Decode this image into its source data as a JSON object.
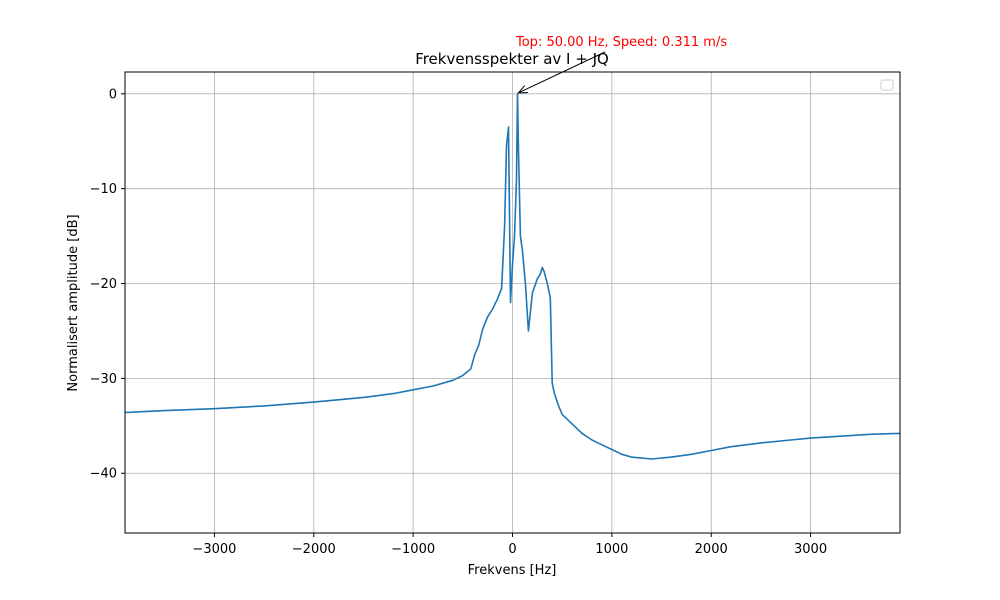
{
  "chart_data": {
    "type": "line",
    "title": "Frekvensspekter av I + JQ",
    "xlabel": "Frekvens [Hz]",
    "ylabel": "Normalisert amplitude [dB]",
    "xlim": [
      -3900,
      3900
    ],
    "ylim": [
      -46.3,
      2.3
    ],
    "xticks": [
      -3000,
      -2000,
      -1000,
      0,
      1000,
      2000,
      3000
    ],
    "xtick_labels": [
      "−3000",
      "−2000",
      "−1000",
      "0",
      "1000",
      "2000",
      "3000"
    ],
    "yticks": [
      0,
      -10,
      -20,
      -30,
      -40
    ],
    "ytick_labels": [
      "0",
      "−10",
      "−20",
      "−30",
      "−40"
    ],
    "grid": true,
    "legend": "top-right, empty",
    "series_color": "#1f77b4",
    "annotation": {
      "text": "Top: 50.00 Hz, Speed: 0.311 m/s",
      "color": "#ff0000",
      "point": [
        50,
        0
      ]
    },
    "series": [
      {
        "x": [
          -3900,
          -3500,
          -3000,
          -2500,
          -2000,
          -1500,
          -1200,
          -1000,
          -800,
          -600,
          -500,
          -420,
          -380,
          -340,
          -300,
          -250,
          -200,
          -150,
          -110,
          -80,
          -60,
          -40,
          -20,
          0,
          20,
          40,
          50,
          60,
          80,
          100,
          130,
          160,
          200,
          250,
          280,
          300,
          320,
          350,
          380,
          400,
          420,
          460,
          500,
          600,
          700,
          800,
          900,
          1000,
          1100,
          1200,
          1400,
          1600,
          1800,
          2000,
          2200,
          2500,
          2800,
          3000,
          3300,
          3600,
          3900
        ],
        "y": [
          -33.6,
          -33.4,
          -33.2,
          -32.9,
          -32.5,
          -32.0,
          -31.6,
          -31.2,
          -30.8,
          -30.2,
          -29.7,
          -29.0,
          -27.5,
          -26.5,
          -24.8,
          -23.5,
          -22.7,
          -21.6,
          -20.5,
          -14.0,
          -5.5,
          -3.5,
          -22.0,
          -18.0,
          -15.0,
          -9.0,
          0.0,
          -6.0,
          -15.0,
          -16.5,
          -20.0,
          -25.0,
          -21.0,
          -19.5,
          -19.0,
          -18.3,
          -18.8,
          -20.0,
          -21.5,
          -30.5,
          -31.5,
          -32.8,
          -33.8,
          -34.8,
          -35.8,
          -36.5,
          -37.0,
          -37.5,
          -38.0,
          -38.3,
          -38.5,
          -38.3,
          -38.0,
          -37.6,
          -37.2,
          -36.8,
          -36.5,
          -36.3,
          -36.1,
          -35.9,
          -35.8
        ]
      }
    ]
  }
}
